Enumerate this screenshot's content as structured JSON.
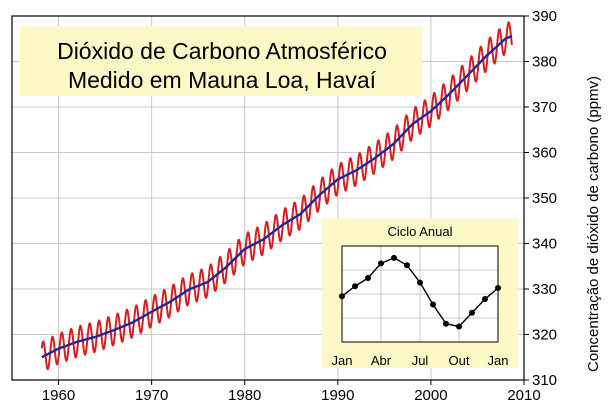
{
  "chart_data": [
    {
      "type": "line",
      "title_line1": "Dióxido de Carbono Atmosférico",
      "title_line2": "Medido em Mauna Loa, Havaí",
      "ylabel": "Concentração de dióxido de carbono (ppmv)",
      "xlim": [
        1955,
        2010
      ],
      "ylim": [
        310,
        390
      ],
      "x_ticks": [
        "1960",
        "1970",
        "1980",
        "1990",
        "2000",
        "2010"
      ],
      "y_ticks": [
        "310",
        "320",
        "330",
        "340",
        "350",
        "360",
        "370",
        "380",
        "390"
      ],
      "grid": true,
      "colors": {
        "monthly": "#d42020",
        "annual": "#1a2a9c",
        "title_bg": "#fdf8c6",
        "inset_bg": "#fdf8c6",
        "grid": "#c8c8c8"
      },
      "series": [
        {
          "key": "monthly",
          "x_start": 1958.2,
          "x_end": 2008.7,
          "seasonal_amplitude_ppmv": 3.3
        },
        {
          "key": "annual",
          "x": [
            1958.2,
            1960,
            1962,
            1964,
            1966,
            1968,
            1970,
            1972,
            1974,
            1976,
            1978,
            1980,
            1982,
            1984,
            1986,
            1988,
            1990,
            1992,
            1994,
            1996,
            1998,
            2000,
            2002,
            2004,
            2006,
            2008,
            2008.7
          ],
          "y": [
            315.0,
            316.9,
            318.4,
            319.5,
            321.0,
            322.7,
            325.0,
            327.2,
            329.9,
            331.5,
            334.8,
            338.8,
            340.9,
            344.0,
            346.5,
            350.6,
            354.1,
            356.1,
            358.8,
            361.9,
            366.2,
            369.1,
            372.9,
            377.1,
            381.3,
            385.0,
            385.6
          ]
        }
      ]
    },
    {
      "type": "line",
      "title": "Ciclo Anual",
      "x_tick_labels": [
        "Jan",
        "Abr",
        "Jul",
        "Out",
        "Jan"
      ],
      "x": [
        0,
        1,
        2,
        3,
        4,
        5,
        6,
        7,
        8,
        9,
        10,
        11,
        12
      ],
      "values": [
        0.0,
        1.1,
        2.0,
        3.6,
        4.2,
        3.4,
        1.5,
        -0.9,
        -3.0,
        -3.3,
        -1.8,
        -0.3,
        0.9
      ],
      "ylim": [
        -5.0,
        5.5
      ],
      "grid": true,
      "color": "#000000"
    }
  ]
}
